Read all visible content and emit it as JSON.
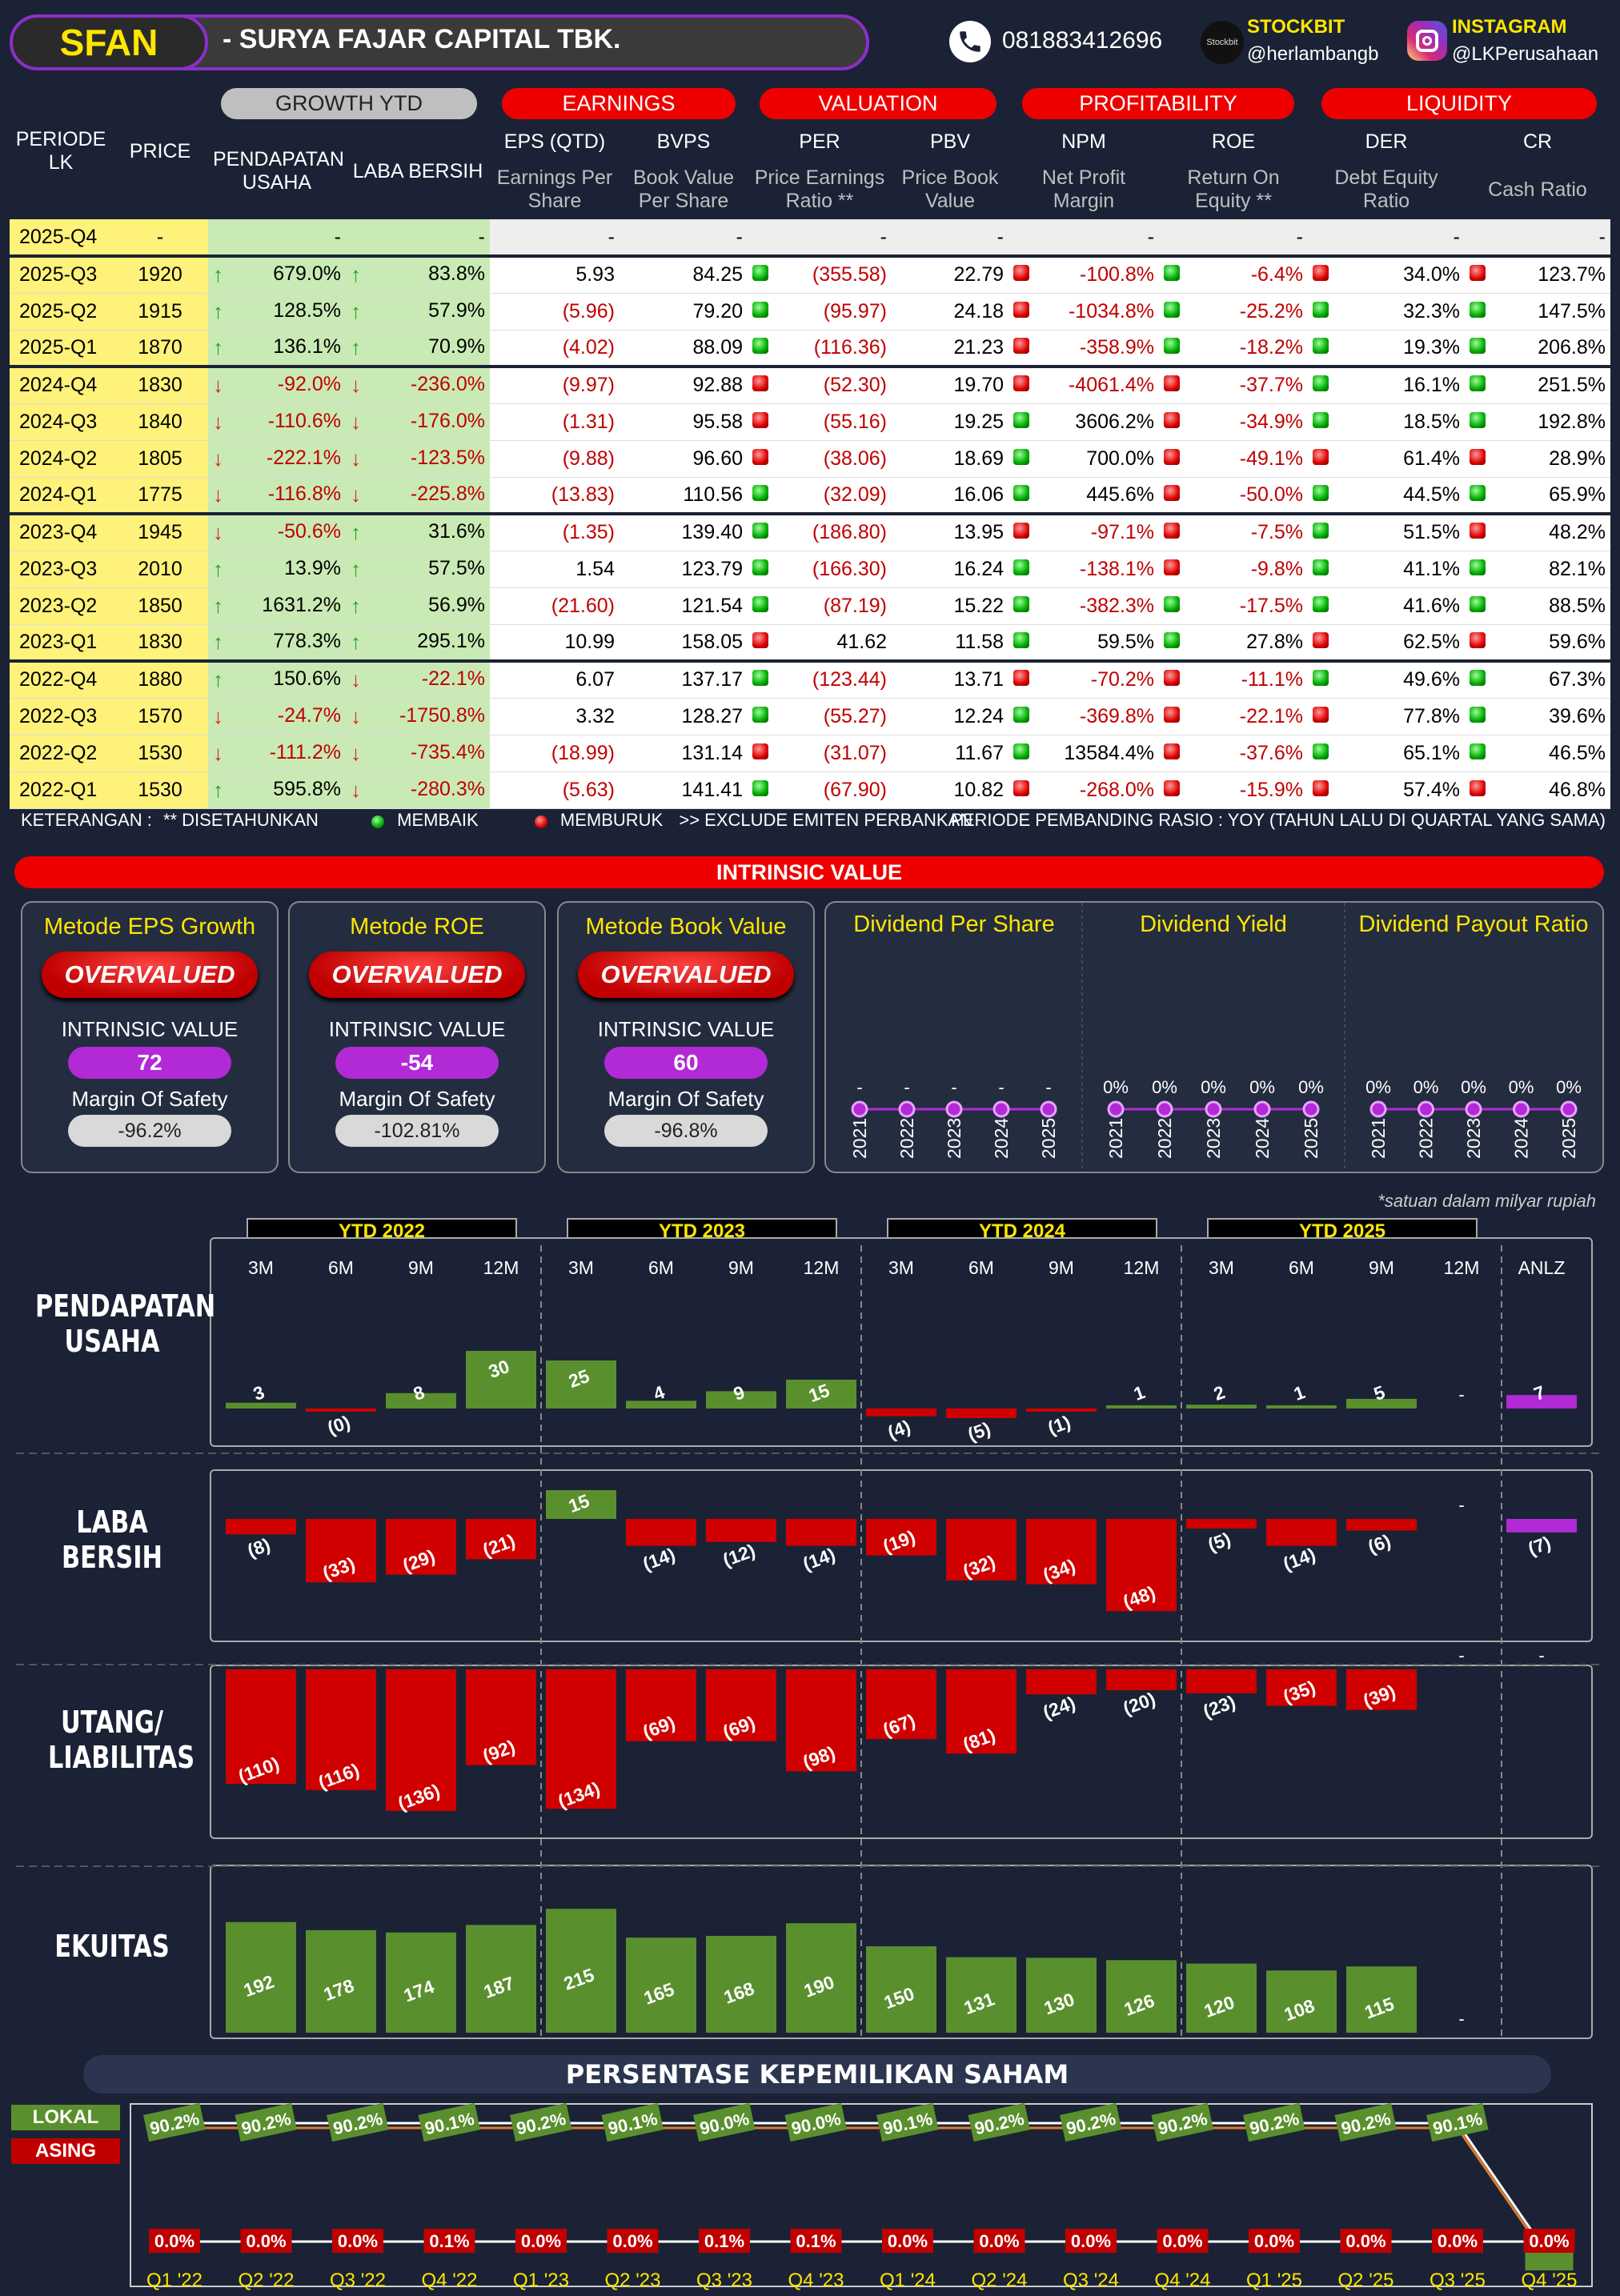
{
  "header": {
    "ticker": "SFAN",
    "company": "-  SURYA FAJAR CAPITAL TBK.",
    "phone": "081883412696",
    "stockbit_label": "STOCKBIT",
    "stockbit_handle": "@herlambangb",
    "instagram_label": "INSTAGRAM",
    "instagram_handle": "@LKPerusahaan",
    "stockbit_logo": "Stockbit"
  },
  "groups": {
    "growth": "GROWTH YTD",
    "earnings": "EARNINGS",
    "valuation": "VALUATION",
    "profitability": "PROFITABILITY",
    "liquidity": "LIQUIDITY"
  },
  "cols": {
    "periode": "PERIODE LK",
    "price": "PRICE",
    "pend": "PENDAPATAN USAHA",
    "laba": "LABA BERSIH",
    "eps": "EPS (QTD)",
    "eps_sub": "Earnings Per Share",
    "bvps": "BVPS",
    "bvps_sub": "Book Value Per Share",
    "per": "PER",
    "per_sub": "Price Earnings Ratio **",
    "pbv": "PBV",
    "pbv_sub": "Price Book Value",
    "npm": "NPM",
    "npm_sub": "Net Profit Margin",
    "roe": "ROE",
    "roe_sub": "Return On Equity **",
    "der": "DER",
    "der_sub": "Debt Equity Ratio",
    "cr": "CR",
    "cr_sub": "Cash Ratio"
  },
  "rows": [
    {
      "p": "2025-Q4",
      "price": "-",
      "pa": "",
      "pend": "-",
      "la": "",
      "laba": "-",
      "eps": "-",
      "bvps": "-",
      "pd": "",
      "per": "-",
      "pbv": "-",
      "nd": "",
      "npm": "-",
      "rd": "",
      "roe": "-",
      "dd": "",
      "der": "-",
      "cd": "",
      "cr": "-"
    },
    {
      "p": "2025-Q3",
      "price": "1920",
      "pa": "up",
      "pend": "679.0%",
      "la": "up",
      "laba": "83.8%",
      "eps": "5.93",
      "bvps": "84.25",
      "pd": "g",
      "per": "(355.58)",
      "pbv": "22.79",
      "nd": "r",
      "npm": "-100.8%",
      "rd": "g",
      "roe": "-6.4%",
      "dd": "r",
      "der": "34.0%",
      "cd": "r",
      "cr": "123.7%"
    },
    {
      "p": "2025-Q2",
      "price": "1915",
      "pa": "up",
      "pend": "128.5%",
      "la": "up",
      "laba": "57.9%",
      "eps": "(5.96)",
      "bvps": "79.20",
      "pd": "g",
      "per": "(95.97)",
      "pbv": "24.18",
      "nd": "r",
      "npm": "-1034.8%",
      "rd": "g",
      "roe": "-25.2%",
      "dd": "g",
      "der": "32.3%",
      "cd": "g",
      "cr": "147.5%"
    },
    {
      "p": "2025-Q1",
      "price": "1870",
      "pa": "up",
      "pend": "136.1%",
      "la": "up",
      "laba": "70.9%",
      "eps": "(4.02)",
      "bvps": "88.09",
      "pd": "g",
      "per": "(116.36)",
      "pbv": "21.23",
      "nd": "r",
      "npm": "-358.9%",
      "rd": "g",
      "roe": "-18.2%",
      "dd": "g",
      "der": "19.3%",
      "cd": "g",
      "cr": "206.8%"
    },
    {
      "p": "2024-Q4",
      "price": "1830",
      "pa": "dn",
      "pend": "-92.0%",
      "la": "dn",
      "laba": "-236.0%",
      "eps": "(9.97)",
      "bvps": "92.88",
      "pd": "r",
      "per": "(52.30)",
      "pbv": "19.70",
      "nd": "r",
      "npm": "-4061.4%",
      "rd": "r",
      "roe": "-37.7%",
      "dd": "g",
      "der": "16.1%",
      "cd": "g",
      "cr": "251.5%"
    },
    {
      "p": "2024-Q3",
      "price": "1840",
      "pa": "dn",
      "pend": "-110.6%",
      "la": "dn",
      "laba": "-176.0%",
      "eps": "(1.31)",
      "bvps": "95.58",
      "pd": "r",
      "per": "(55.16)",
      "pbv": "19.25",
      "nd": "g",
      "npm": "3606.2%",
      "rd": "r",
      "roe": "-34.9%",
      "dd": "g",
      "der": "18.5%",
      "cd": "g",
      "cr": "192.8%"
    },
    {
      "p": "2024-Q2",
      "price": "1805",
      "pa": "dn",
      "pend": "-222.1%",
      "la": "dn",
      "laba": "-123.5%",
      "eps": "(9.88)",
      "bvps": "96.60",
      "pd": "r",
      "per": "(38.06)",
      "pbv": "18.69",
      "nd": "g",
      "npm": "700.0%",
      "rd": "r",
      "roe": "-49.1%",
      "dd": "r",
      "der": "61.4%",
      "cd": "r",
      "cr": "28.9%"
    },
    {
      "p": "2024-Q1",
      "price": "1775",
      "pa": "dn",
      "pend": "-116.8%",
      "la": "dn",
      "laba": "-225.8%",
      "eps": "(13.83)",
      "bvps": "110.56",
      "pd": "g",
      "per": "(32.09)",
      "pbv": "16.06",
      "nd": "g",
      "npm": "445.6%",
      "rd": "r",
      "roe": "-50.0%",
      "dd": "g",
      "der": "44.5%",
      "cd": "g",
      "cr": "65.9%"
    },
    {
      "p": "2023-Q4",
      "price": "1945",
      "pa": "dn",
      "pend": "-50.6%",
      "la": "up",
      "laba": "31.6%",
      "eps": "(1.35)",
      "bvps": "139.40",
      "pd": "g",
      "per": "(186.80)",
      "pbv": "13.95",
      "nd": "r",
      "npm": "-97.1%",
      "rd": "r",
      "roe": "-7.5%",
      "dd": "g",
      "der": "51.5%",
      "cd": "r",
      "cr": "48.2%"
    },
    {
      "p": "2023-Q3",
      "price": "2010",
      "pa": "up",
      "pend": "13.9%",
      "la": "up",
      "laba": "57.5%",
      "eps": "1.54",
      "bvps": "123.79",
      "pd": "g",
      "per": "(166.30)",
      "pbv": "16.24",
      "nd": "g",
      "npm": "-138.1%",
      "rd": "r",
      "roe": "-9.8%",
      "dd": "g",
      "der": "41.1%",
      "cd": "g",
      "cr": "82.1%"
    },
    {
      "p": "2023-Q2",
      "price": "1850",
      "pa": "up",
      "pend": "1631.2%",
      "la": "up",
      "laba": "56.9%",
      "eps": "(21.60)",
      "bvps": "121.54",
      "pd": "g",
      "per": "(87.19)",
      "pbv": "15.22",
      "nd": "g",
      "npm": "-382.3%",
      "rd": "g",
      "roe": "-17.5%",
      "dd": "g",
      "der": "41.6%",
      "cd": "g",
      "cr": "88.5%"
    },
    {
      "p": "2023-Q1",
      "price": "1830",
      "pa": "up",
      "pend": "778.3%",
      "la": "up",
      "laba": "295.1%",
      "eps": "10.99",
      "bvps": "158.05",
      "pd": "r",
      "per": "41.62",
      "pbv": "11.58",
      "nd": "g",
      "npm": "59.5%",
      "rd": "g",
      "roe": "27.8%",
      "dd": "r",
      "der": "62.5%",
      "cd": "r",
      "cr": "59.6%"
    },
    {
      "p": "2022-Q4",
      "price": "1880",
      "pa": "up",
      "pend": "150.6%",
      "la": "dn",
      "laba": "-22.1%",
      "eps": "6.07",
      "bvps": "137.17",
      "pd": "g",
      "per": "(123.44)",
      "pbv": "13.71",
      "nd": "r",
      "npm": "-70.2%",
      "rd": "r",
      "roe": "-11.1%",
      "dd": "g",
      "der": "49.6%",
      "cd": "g",
      "cr": "67.3%"
    },
    {
      "p": "2022-Q3",
      "price": "1570",
      "pa": "dn",
      "pend": "-24.7%",
      "la": "dn",
      "laba": "-1750.8%",
      "eps": "3.32",
      "bvps": "128.27",
      "pd": "g",
      "per": "(55.27)",
      "pbv": "12.24",
      "nd": "g",
      "npm": "-369.8%",
      "rd": "r",
      "roe": "-22.1%",
      "dd": "r",
      "der": "77.8%",
      "cd": "g",
      "cr": "39.6%"
    },
    {
      "p": "2022-Q2",
      "price": "1530",
      "pa": "dn",
      "pend": "-111.2%",
      "la": "dn",
      "laba": "-735.4%",
      "eps": "(18.99)",
      "bvps": "131.14",
      "pd": "r",
      "per": "(31.07)",
      "pbv": "11.67",
      "nd": "g",
      "npm": "13584.4%",
      "rd": "r",
      "roe": "-37.6%",
      "dd": "g",
      "der": "65.1%",
      "cd": "g",
      "cr": "46.5%"
    },
    {
      "p": "2022-Q1",
      "price": "1530",
      "pa": "up",
      "pend": "595.8%",
      "la": "dn",
      "laba": "-280.3%",
      "eps": "(5.63)",
      "bvps": "141.41",
      "pd": "g",
      "per": "(67.90)",
      "pbv": "10.82",
      "nd": "r",
      "npm": "-268.0%",
      "rd": "r",
      "roe": "-15.9%",
      "dd": "r",
      "der": "57.4%",
      "cd": "r",
      "cr": "46.8%"
    }
  ],
  "notes": {
    "ket": "KETERANGAN :",
    "ann": "** DISETAHUNKAN",
    "membaik": "MEMBAIK",
    "memburuk": "MEMBURUK",
    "exclude": ">> EXCLUDE EMITEN PERBANKAN",
    "periode": "PERIODE PEMBANDING RASIO : YOY (TAHUN LALU DI QUARTAL YANG SAMA)"
  },
  "intrinsic": {
    "title": "INTRINSIC VALUE",
    "iv_label": "INTRINSIC VALUE",
    "mos_label": "Margin Of Safety",
    "methods": [
      {
        "title": "Metode EPS Growth",
        "status": "OVERVALUED",
        "iv": "72",
        "mos": "-96.2%"
      },
      {
        "title": "Metode ROE",
        "status": "OVERVALUED",
        "iv": "-54",
        "mos": "-102.81%"
      },
      {
        "title": "Metode Book Value",
        "status": "OVERVALUED",
        "iv": "60",
        "mos": "-96.8%"
      }
    ],
    "dividend": [
      {
        "title": "Dividend Per Share",
        "labels": [
          "-",
          "-",
          "-",
          "-",
          "-"
        ]
      },
      {
        "title": "Dividend Yield",
        "labels": [
          "0%",
          "0%",
          "0%",
          "0%",
          "0%"
        ]
      },
      {
        "title": "Dividend Payout Ratio",
        "labels": [
          "0%",
          "0%",
          "0%",
          "0%",
          "0%"
        ]
      }
    ],
    "years": [
      "2021",
      "2022",
      "2023",
      "2024",
      "2025"
    ]
  },
  "fin": {
    "unit_note": "*satuan dalam milyar rupiah",
    "ytd": [
      "YTD 2022",
      "YTD 2023",
      "YTD 2024",
      "YTD 2025"
    ],
    "months": [
      "3M",
      "6M",
      "9M",
      "12M",
      "3M",
      "6M",
      "9M",
      "12M",
      "3M",
      "6M",
      "9M",
      "12M",
      "3M",
      "6M",
      "9M",
      "12M",
      "ANLZ"
    ],
    "labels": {
      "pend": "PENDAPATAN USAHA",
      "laba": "LABA BERSIH",
      "utang": "UTANG/ LIABILITAS",
      "ekuitas": "EKUITAS"
    }
  },
  "chart_data": [
    {
      "type": "bar",
      "title": "PENDAPATAN USAHA",
      "categories": [
        "3M '22",
        "6M '22",
        "9M '22",
        "12M '22",
        "3M '23",
        "6M '23",
        "9M '23",
        "12M '23",
        "3M '24",
        "6M '24",
        "9M '24",
        "12M '24",
        "3M '25",
        "6M '25",
        "9M '25",
        "12M '25",
        "ANLZ"
      ],
      "values": [
        3,
        -0.3,
        8,
        30,
        25,
        4,
        9,
        15,
        -4,
        -5,
        -1,
        1,
        2,
        1,
        5,
        null,
        7
      ],
      "labels": [
        "3",
        "(0)",
        "8",
        "30",
        "25",
        "4",
        "9",
        "15",
        "(4)",
        "(5)",
        "(1)",
        "1",
        "2",
        "1",
        "5",
        "-",
        "7"
      ]
    },
    {
      "type": "bar",
      "title": "LABA BERSIH",
      "categories": [
        "3M '22",
        "6M '22",
        "9M '22",
        "12M '22",
        "3M '23",
        "6M '23",
        "9M '23",
        "12M '23",
        "3M '24",
        "6M '24",
        "9M '24",
        "12M '24",
        "3M '25",
        "6M '25",
        "9M '25",
        "12M '25",
        "ANLZ"
      ],
      "values": [
        -8,
        -33,
        -29,
        -21,
        15,
        -14,
        -12,
        -14,
        -19,
        -32,
        -34,
        -48,
        -5,
        -14,
        -6,
        null,
        -7
      ],
      "labels": [
        "(8)",
        "(33)",
        "(29)",
        "(21)",
        "15",
        "(14)",
        "(12)",
        "(14)",
        "(19)",
        "(32)",
        "(34)",
        "(48)",
        "(5)",
        "(14)",
        "(6)",
        "-",
        "(7)"
      ]
    },
    {
      "type": "bar",
      "title": "UTANG/ LIABILITAS",
      "categories": [
        "3M '22",
        "6M '22",
        "9M '22",
        "12M '22",
        "3M '23",
        "6M '23",
        "9M '23",
        "12M '23",
        "3M '24",
        "6M '24",
        "9M '24",
        "12M '24",
        "3M '25",
        "6M '25",
        "9M '25",
        "12M '25",
        "ANLZ"
      ],
      "values": [
        -110,
        -116,
        -136,
        -92,
        -134,
        -69,
        -69,
        -98,
        -67,
        -81,
        -24,
        -20,
        -23,
        -35,
        -39,
        null,
        null
      ],
      "labels": [
        "(110)",
        "(116)",
        "(136)",
        "(92)",
        "(134)",
        "(69)",
        "(69)",
        "(98)",
        "(67)",
        "(81)",
        "(24)",
        "(20)",
        "(23)",
        "(35)",
        "(39)",
        "-",
        "-"
      ]
    },
    {
      "type": "bar",
      "title": "EKUITAS",
      "categories": [
        "3M '22",
        "6M '22",
        "9M '22",
        "12M '22",
        "3M '23",
        "6M '23",
        "9M '23",
        "12M '23",
        "3M '24",
        "6M '24",
        "9M '24",
        "12M '24",
        "3M '25",
        "6M '25",
        "9M '25",
        "12M '25"
      ],
      "values": [
        192,
        178,
        174,
        187,
        215,
        165,
        168,
        190,
        150,
        131,
        130,
        126,
        120,
        108,
        115,
        null
      ],
      "labels": [
        "192",
        "178",
        "174",
        "187",
        "215",
        "165",
        "168",
        "190",
        "150",
        "131",
        "130",
        "126",
        "120",
        "108",
        "115",
        "-"
      ]
    },
    {
      "type": "line",
      "title": "PERSENTASE KEPEMILIKAN SAHAM",
      "categories": [
        "Q1 '22",
        "Q2 '22",
        "Q3 '22",
        "Q4 '22",
        "Q1 '23",
        "Q2 '23",
        "Q3 '23",
        "Q4 '23",
        "Q1 '24",
        "Q2 '24",
        "Q3 '24",
        "Q4 '24",
        "Q1 '25",
        "Q2 '25",
        "Q3 '25",
        "Q4 '25"
      ],
      "series": [
        {
          "name": "LOKAL",
          "values": [
            90.2,
            90.2,
            90.2,
            90.1,
            90.2,
            90.1,
            90.0,
            90.0,
            90.1,
            90.2,
            90.2,
            90.2,
            90.2,
            90.2,
            90.1,
            0
          ],
          "labels": [
            "90.2%",
            "90.2%",
            "90.2%",
            "90.1%",
            "90.2%",
            "90.1%",
            "90.0%",
            "90.0%",
            "90.1%",
            "90.2%",
            "90.2%",
            "90.2%",
            "90.2%",
            "90.2%",
            "90.1%",
            ""
          ]
        },
        {
          "name": "ASING",
          "values": [
            0,
            0,
            0,
            0.1,
            0,
            0,
            0.1,
            0.1,
            0,
            0,
            0,
            0,
            0,
            0,
            0,
            0
          ],
          "labels": [
            "0.0%",
            "0.0%",
            "0.0%",
            "0.1%",
            "0.0%",
            "0.0%",
            "0.1%",
            "0.1%",
            "0.0%",
            "0.0%",
            "0.0%",
            "0.0%",
            "0.0%",
            "0.0%",
            "0.0%",
            "0.0%"
          ]
        }
      ]
    }
  ],
  "colors": {
    "bg": "#1b2235",
    "red": "#e00000",
    "green": "#5a8f2e",
    "purple": "#b22ad6",
    "yellow": "#ffe600"
  }
}
